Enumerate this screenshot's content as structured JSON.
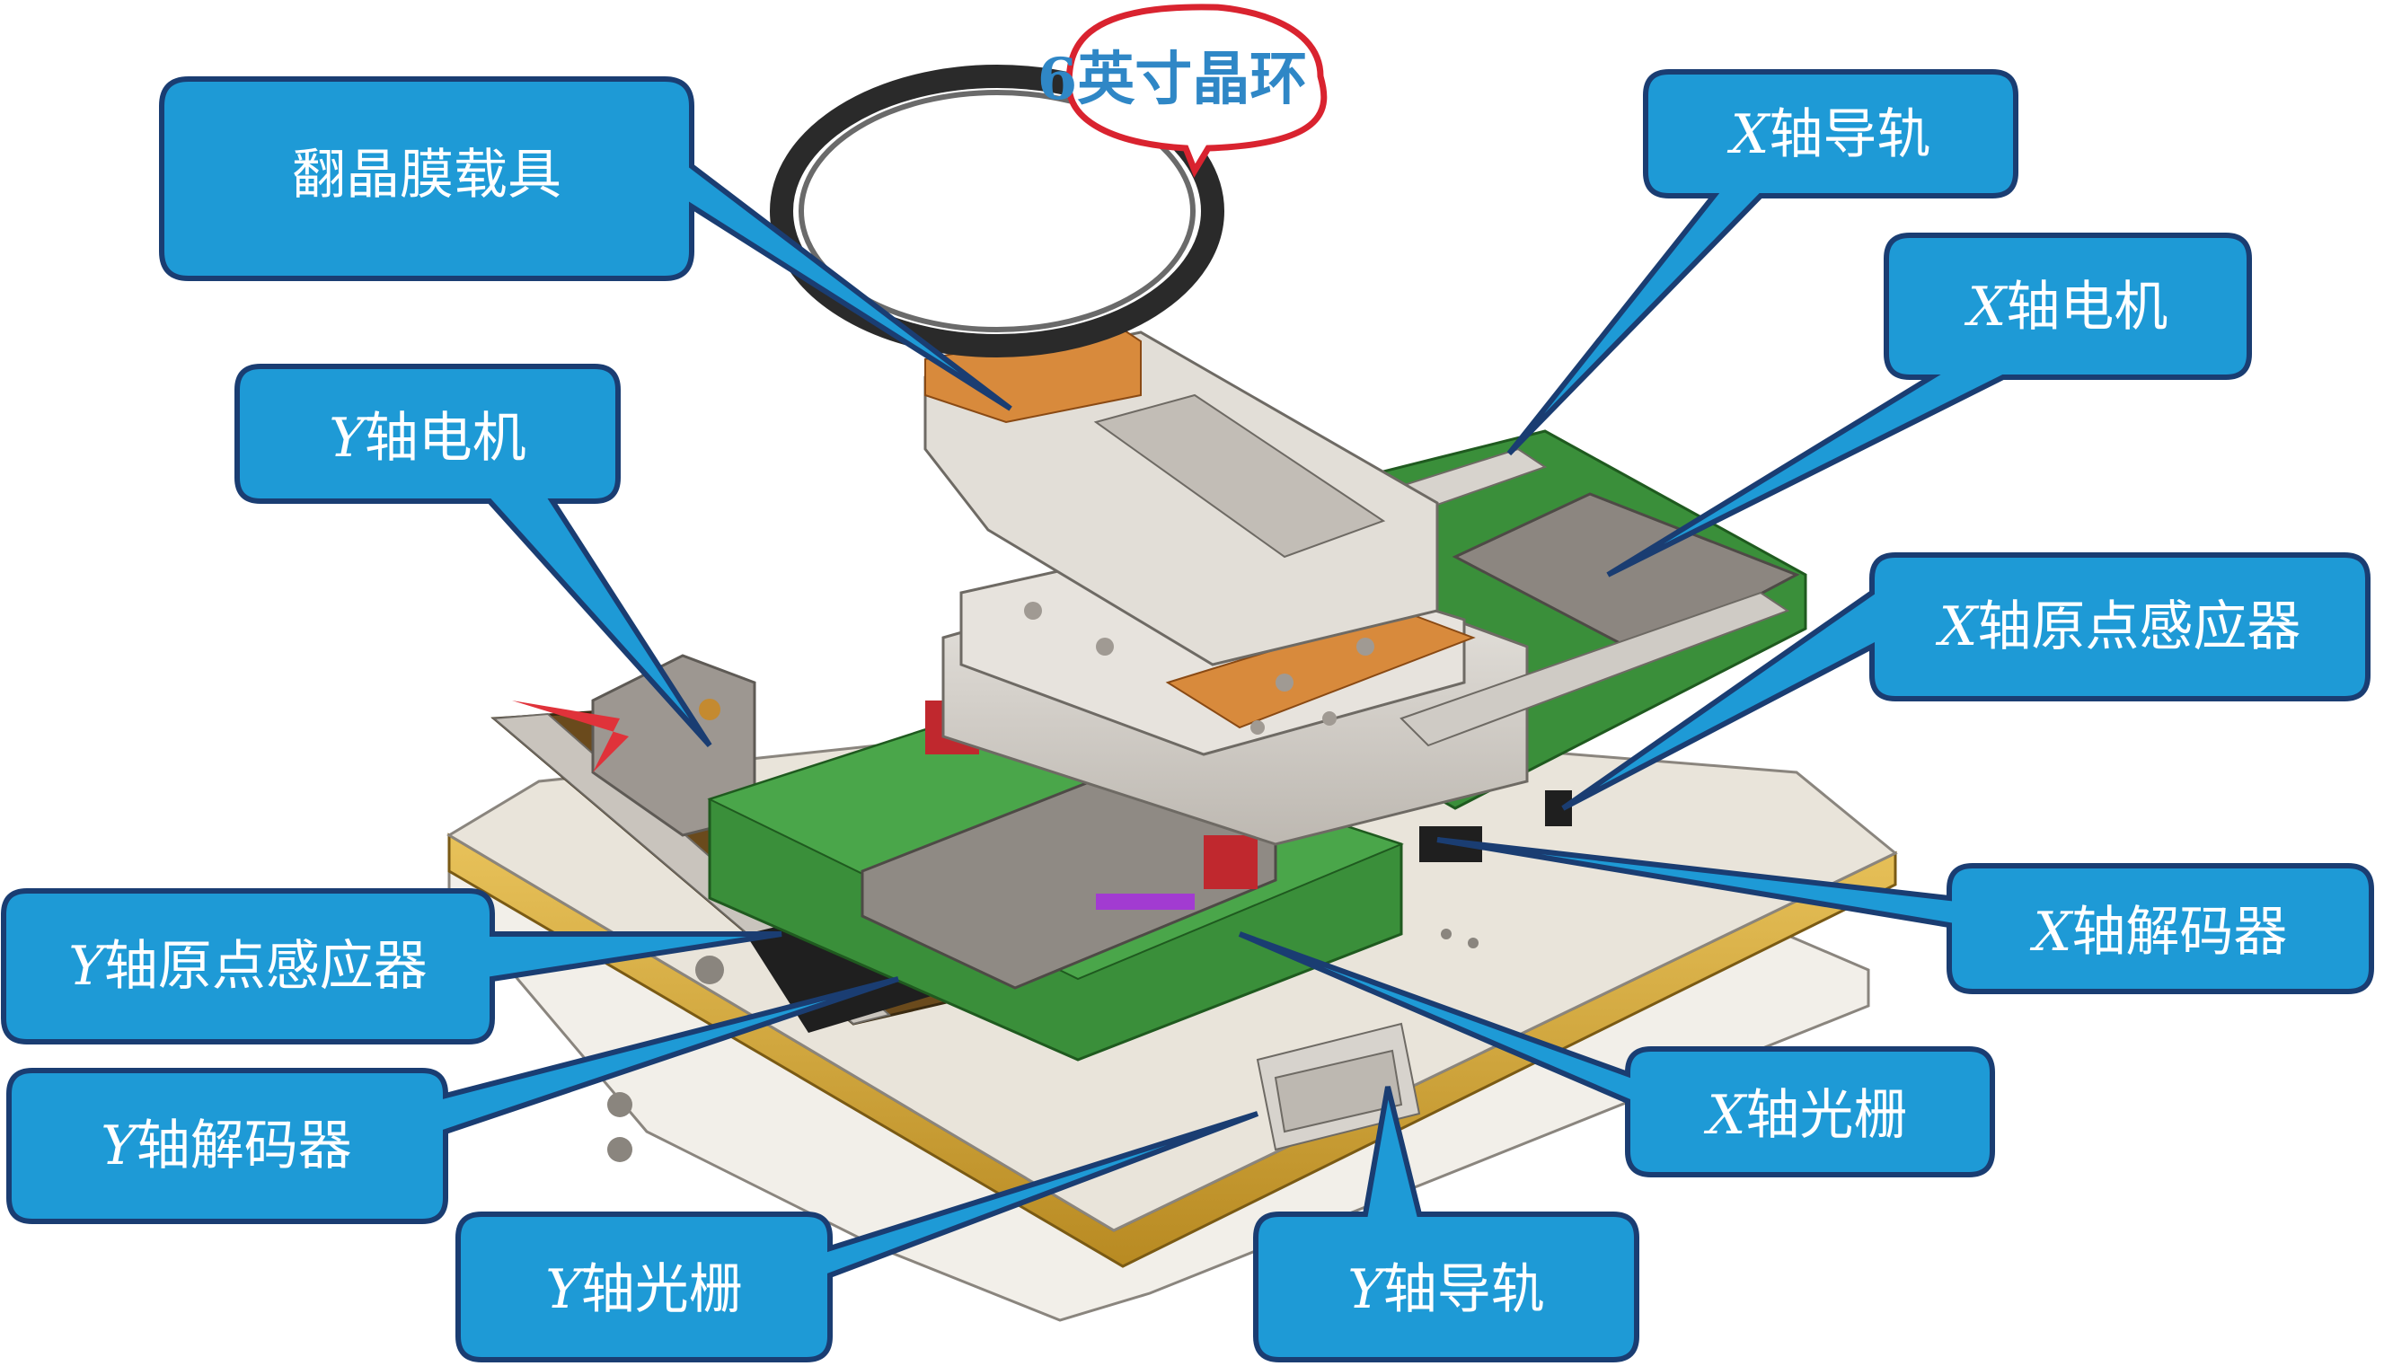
{
  "diagram": {
    "oval_tag": "6英寸晶环",
    "labels": {
      "film_carrier": "翻晶膜载具",
      "x_rail_axis": "X",
      "x_rail": "轴导轨",
      "x_motor_axis": "X",
      "x_motor": "轴电机",
      "y_motor_axis": "Y",
      "y_motor": "轴电机",
      "x_origin_axis": "X",
      "x_origin": "轴原点感应器",
      "y_origin_axis": "Y",
      "y_origin": "轴原点感应器",
      "x_decoder_axis": "X",
      "x_decoder": "轴解码器",
      "y_decoder_axis": "Y",
      "y_decoder": "轴解码器",
      "x_grating_axis": "X",
      "x_grating": "轴光栅",
      "y_grating_axis": "Y",
      "y_grating": "轴光栅",
      "y_rail_axis": "Y",
      "y_rail": "轴导轨"
    },
    "colors": {
      "callout_fill": "#1e9ad6",
      "callout_border": "#1a3d72",
      "oval_border": "#d9232f",
      "tag_text": "#2f87c6",
      "base_plate": "#d8a93a",
      "green_stage": "#3a8f3a",
      "metal": "#d6d2cc"
    }
  }
}
